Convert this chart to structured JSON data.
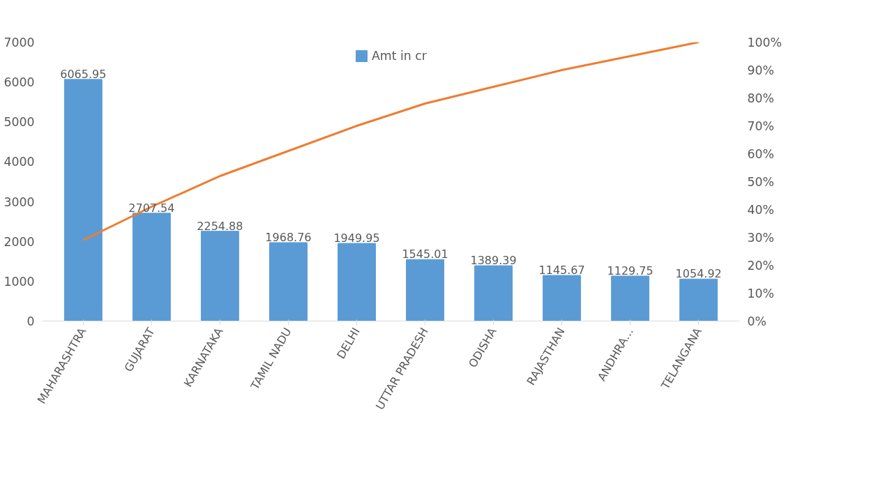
{
  "chart_data": {
    "type": "bar",
    "categories": [
      "MAHARASHTRA",
      "GUJARAT",
      "KARNATAKA",
      "TAMIL NADU",
      "DELHI",
      "UTTAR PRADESH",
      "ODISHA",
      "RAJASTHAN",
      "ANDHRA…",
      "TELANGANA"
    ],
    "series": [
      {
        "name": "Amt in cr",
        "color": "#5b9bd5",
        "values": [
          6065.95,
          2707.54,
          2254.88,
          1968.76,
          1949.95,
          1545.01,
          1389.39,
          1145.67,
          1129.75,
          1054.92
        ],
        "value_labels": [
          "6065.95",
          "2707.54",
          "2254.88",
          "1968.76",
          "1949.95",
          "1545.01",
          "1389.39",
          "1145.67",
          "1129.75",
          "1054.92"
        ]
      },
      {
        "type": "line",
        "axis": "y2",
        "color": "#ed7d31",
        "values": [
          29,
          41,
          52,
          61,
          70,
          78,
          84,
          90,
          95,
          100
        ]
      }
    ],
    "legend": "top",
    "grid": false,
    "marker": "none",
    "ylim": [
      0,
      7000
    ],
    "yticks": [
      0,
      1000,
      2000,
      3000,
      4000,
      5000,
      6000,
      7000
    ],
    "y2lim": [
      0,
      100
    ],
    "y2ticks": [
      {
        "value": 0,
        "label": "0%"
      },
      {
        "value": 10,
        "label": "10%"
      },
      {
        "value": 20,
        "label": "20%"
      },
      {
        "value": 30,
        "label": "30%"
      },
      {
        "value": 40,
        "label": "40%"
      },
      {
        "value": 50,
        "label": "50%"
      },
      {
        "value": 60,
        "label": "60%"
      },
      {
        "value": 70,
        "label": "70%"
      },
      {
        "value": 80,
        "label": "80%"
      },
      {
        "value": 90,
        "label": "90%"
      },
      {
        "value": 100,
        "label": "100%"
      }
    ]
  }
}
